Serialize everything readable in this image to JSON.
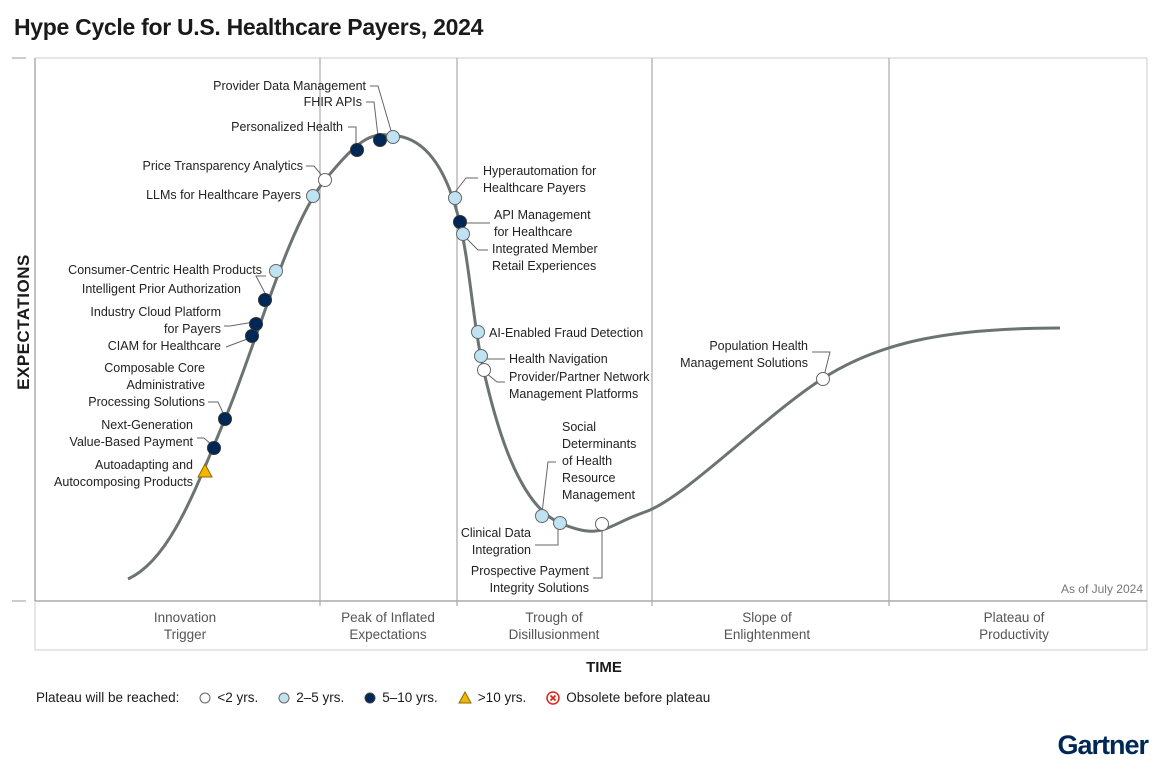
{
  "title": "Hype Cycle for U.S. Healthcare Payers, 2024",
  "y_axis_label": "EXPECTATIONS",
  "x_axis_label": "TIME",
  "as_of": "As of July 2024",
  "phases": [
    {
      "label": "Innovation\nTrigger"
    },
    {
      "label": "Peak of Inflated\nExpectations"
    },
    {
      "label": "Trough of\nDisillusionment"
    },
    {
      "label": "Slope of\nEnlightenment"
    },
    {
      "label": "Plateau of\nProductivity"
    }
  ],
  "legend": {
    "title": "Plateau will be reached:",
    "items": [
      {
        "label": "<2 yrs.",
        "symbol": "circle",
        "color": "#ffffff"
      },
      {
        "label": "2–5 yrs.",
        "symbol": "circle",
        "color": "#bfe3f2"
      },
      {
        "label": "5–10 yrs.",
        "symbol": "circle",
        "color": "#002856"
      },
      {
        "label": ">10 yrs.",
        "symbol": "triangle",
        "color": "#f5b400"
      },
      {
        "label": "Obsolete before plateau",
        "symbol": "x-circle",
        "color": "#e0241b"
      }
    ]
  },
  "technologies": [
    {
      "name": "Autoadapting and\nAutocomposing Products",
      "plateau": ">10 yrs."
    },
    {
      "name": "Next-Generation\nValue-Based Payment",
      "plateau": "5–10 yrs."
    },
    {
      "name": "Composable Core\nAdministrative\nProcessing Solutions",
      "plateau": "5–10 yrs."
    },
    {
      "name": "CIAM for Healthcare",
      "plateau": "5–10 yrs."
    },
    {
      "name": "Industry Cloud Platform\nfor Payers",
      "plateau": "5–10 yrs."
    },
    {
      "name": "Intelligent Prior Authorization",
      "plateau": "5–10 yrs."
    },
    {
      "name": "Consumer-Centric Health Products",
      "plateau": "2–5 yrs."
    },
    {
      "name": "LLMs for Healthcare Payers",
      "plateau": "2–5 yrs."
    },
    {
      "name": "Price Transparency Analytics",
      "plateau": "<2 yrs."
    },
    {
      "name": "Personalized Health",
      "plateau": "5–10 yrs."
    },
    {
      "name": "FHIR APIs",
      "plateau": "5–10 yrs."
    },
    {
      "name": "Provider Data Management",
      "plateau": "2–5 yrs."
    },
    {
      "name": "Hyperautomation for\nHealthcare Payers",
      "plateau": "2–5 yrs."
    },
    {
      "name": "API Management\nfor Healthcare",
      "plateau": "5–10 yrs."
    },
    {
      "name": "Integrated Member\nRetail Experiences",
      "plateau": "2–5 yrs."
    },
    {
      "name": "AI-Enabled Fraud Detection",
      "plateau": "2–5 yrs."
    },
    {
      "name": "Health Navigation",
      "plateau": "2–5 yrs."
    },
    {
      "name": "Provider/Partner Network\nManagement Platforms",
      "plateau": "<2 yrs."
    },
    {
      "name": "Social\nDeterminants\nof Health\nResource\nManagement",
      "plateau": "2–5 yrs."
    },
    {
      "name": "Clinical Data\nIntegration",
      "plateau": "2–5 yrs."
    },
    {
      "name": "Prospective Payment\nIntegrity Solutions",
      "plateau": "<2 yrs."
    },
    {
      "name": "Population Health\nManagement Solutions",
      "plateau": "<2 yrs."
    }
  ],
  "logo": "Gartner"
}
